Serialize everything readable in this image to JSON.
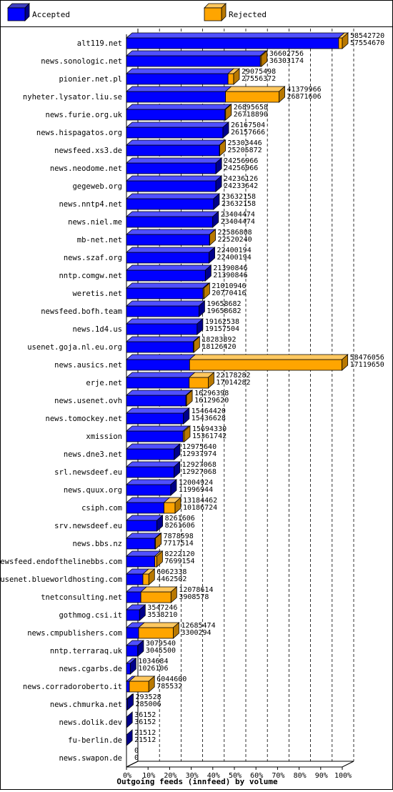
{
  "chart_data": {
    "type": "bar",
    "orientation": "horizontal",
    "stacked": true,
    "three_d": true,
    "xlabel": "Outgoing feeds (innfeed) by volume",
    "x_ticks": [
      "0%",
      "10%",
      "20%",
      "30%",
      "40%",
      "50%",
      "60%",
      "70%",
      "80%",
      "90%",
      "100%"
    ],
    "xlim": [
      0,
      100
    ],
    "grid": "vertical dashed",
    "legend_position": "top",
    "colors": {
      "accepted": "#0000ff",
      "rejected": "#ffa500"
    },
    "series": [
      {
        "name": "Accepted",
        "key": "accepted"
      },
      {
        "name": "Rejected",
        "key": "rejected"
      }
    ],
    "categories": [
      "alt119.net",
      "news.sonologic.net",
      "pionier.net.pl",
      "nyheter.lysator.liu.se",
      "news.furie.org.uk",
      "news.hispagatos.org",
      "newsfeed.xs3.de",
      "news.neodome.net",
      "gegeweb.org",
      "news.nntp4.net",
      "news.niel.me",
      "mb-net.net",
      "news.szaf.org",
      "nntp.comgw.net",
      "weretis.net",
      "newsfeed.bofh.team",
      "news.1d4.us",
      "usenet.goja.nl.eu.org",
      "news.ausics.net",
      "erje.net",
      "news.usenet.ovh",
      "news.tomockey.net",
      "xmission",
      "news.dne3.net",
      "srl.newsdeef.eu",
      "news.quux.org",
      "csiph.com",
      "srv.newsdeef.eu",
      "news.bbs.nz",
      "newsfeed.endofthelinebbs.com",
      "usenet.blueworldhosting.com",
      "tnetconsulting.net",
      "gothmog.csi.it",
      "news.cmpublishers.com",
      "nntp.terraraq.uk",
      "news.cgarbs.de",
      "news.corradoroberto.it",
      "news.chmurka.net",
      "news.dolik.dev",
      "fu-berlin.de",
      "news.swapon.de"
    ],
    "offered": [
      58542720,
      36602756,
      29075498,
      41379966,
      26895658,
      26167504,
      25303446,
      24256966,
      24236126,
      23632158,
      23404474,
      22586808,
      22400194,
      21390846,
      21010946,
      19658682,
      19162538,
      18283892,
      58476056,
      22178282,
      16296398,
      15464420,
      15694330,
      12975640,
      12927068,
      12004924,
      13184462,
      8261606,
      7878598,
      8222120,
      6062338,
      12078614,
      3547246,
      12685474,
      3079540,
      1034684,
      6044600,
      293528,
      36152,
      21512,
      0
    ],
    "accepted": [
      57554670,
      36303174,
      27556372,
      26871606,
      26718890,
      26157666,
      25205872,
      24256966,
      24233642,
      23632158,
      23404474,
      22520240,
      22400194,
      21390846,
      20770416,
      19658682,
      19157504,
      18126420,
      17119650,
      17014282,
      16129620,
      15436628,
      15361742,
      12937974,
      12927068,
      11996944,
      10186724,
      8261606,
      7717514,
      7699154,
      4462502,
      3908578,
      3538210,
      3300294,
      3045500,
      1026106,
      785532,
      285006,
      36152,
      21512,
      0
    ]
  }
}
